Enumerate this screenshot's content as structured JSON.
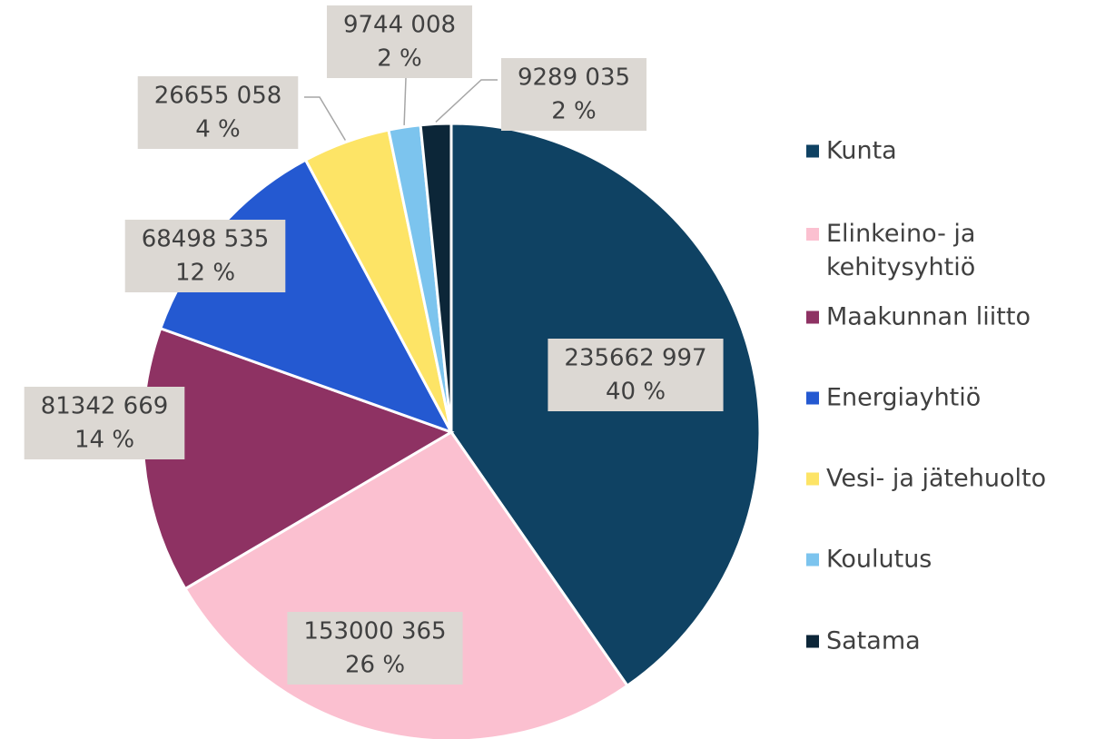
{
  "chart_data": {
    "type": "pie",
    "categories": [
      "Kunta",
      "Elinkeino- ja kehitysyhtiö",
      "Maakunnan liitto",
      "Energiayhtiö",
      "Vesi- ja jätehuolto",
      "Koulutus",
      "Satama"
    ],
    "values": [
      235662997,
      153000365,
      81342669,
      68498535,
      26655058,
      9744008,
      9289035
    ],
    "value_labels": [
      "235662 997",
      "153000 365",
      "81342 669",
      "68498 535",
      "26655 058",
      "9744 008",
      "9289 035"
    ],
    "percent_labels": [
      "40 %",
      "26 %",
      "14 %",
      "12 %",
      "4 %",
      "2 %",
      "2 %"
    ],
    "colors": [
      "#0f4263",
      "#fbc0d0",
      "#8e3263",
      "#2459d1",
      "#fde466",
      "#7cc4ee",
      "#0c2638"
    ],
    "legend": "right"
  }
}
